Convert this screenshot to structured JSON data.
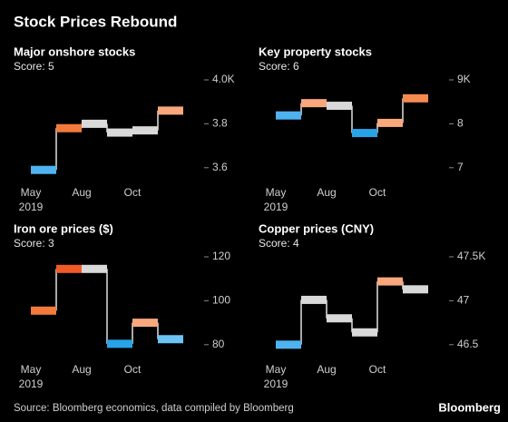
{
  "title": "Stock Prices Rebound",
  "source": "Source: Bloomberg economics, data compiled by Bloomberg",
  "brand": "Bloomberg",
  "chart_data": [
    {
      "type": "step",
      "title": "Major onshore stocks",
      "subtitle": "Score: 5",
      "categories": [
        "May",
        null,
        "Aug",
        null,
        "Oct",
        null
      ],
      "year": "2019",
      "values": [
        3.59,
        3.78,
        3.8,
        3.76,
        3.77,
        3.86
      ],
      "colors": [
        "#4fb3f0",
        "#f37a3c",
        "#d9d9d9",
        "#d9d9d9",
        "#d9d9d9",
        "#f9a77c"
      ],
      "ylim": [
        3.5,
        4.0
      ],
      "yticks": [
        3.6,
        3.8,
        {
          "value": 4.0,
          "label": "4.0K"
        }
      ]
    },
    {
      "type": "step",
      "title": "Key property stocks",
      "subtitle": "Score: 6",
      "categories": [
        "May",
        null,
        "Aug",
        null,
        "Oct",
        null
      ],
      "year": "2019",
      "values": [
        8.19,
        8.47,
        8.41,
        7.79,
        8.02,
        8.58
      ],
      "colors": [
        "#4fb3f0",
        "#f9a77c",
        "#d9d9d9",
        "#29a3e8",
        "#f9a77c",
        "#f58a50"
      ],
      "ylim": [
        6.5,
        9
      ],
      "yticks": [
        7,
        8,
        {
          "value": 9,
          "label": "9K"
        }
      ]
    },
    {
      "type": "step",
      "title": "Iron ore prices ($)",
      "subtitle": "Score: 3",
      "categories": [
        "May",
        null,
        "Aug",
        null,
        "Oct",
        null
      ],
      "year": "2019",
      "values": [
        95.5,
        114.5,
        114.5,
        80.4,
        90,
        82.5
      ],
      "colors": [
        "#f37a3c",
        "#f05a28",
        "#d9d9d9",
        "#29a3e8",
        "#f9a77c",
        "#6cc4f5"
      ],
      "ylim": [
        70,
        120
      ],
      "yticks": [
        80,
        100,
        120
      ]
    },
    {
      "type": "step",
      "title": "Copper prices (CNY)",
      "subtitle": "Score: 4",
      "categories": [
        "May",
        null,
        "Aug",
        null,
        "Oct",
        null
      ],
      "year": "2019",
      "values": [
        46.5,
        47.01,
        46.8,
        46.64,
        47.22,
        47.13
      ],
      "colors": [
        "#4fb3f0",
        "#d9d9d9",
        "#d9d9d9",
        "#d9d9d9",
        "#f9a77c",
        "#d9d9d9"
      ],
      "ylim": [
        46.25,
        47.5
      ],
      "yticks": [
        46.5,
        47.0,
        {
          "value": 47.5,
          "label": "47.5K"
        }
      ]
    }
  ]
}
